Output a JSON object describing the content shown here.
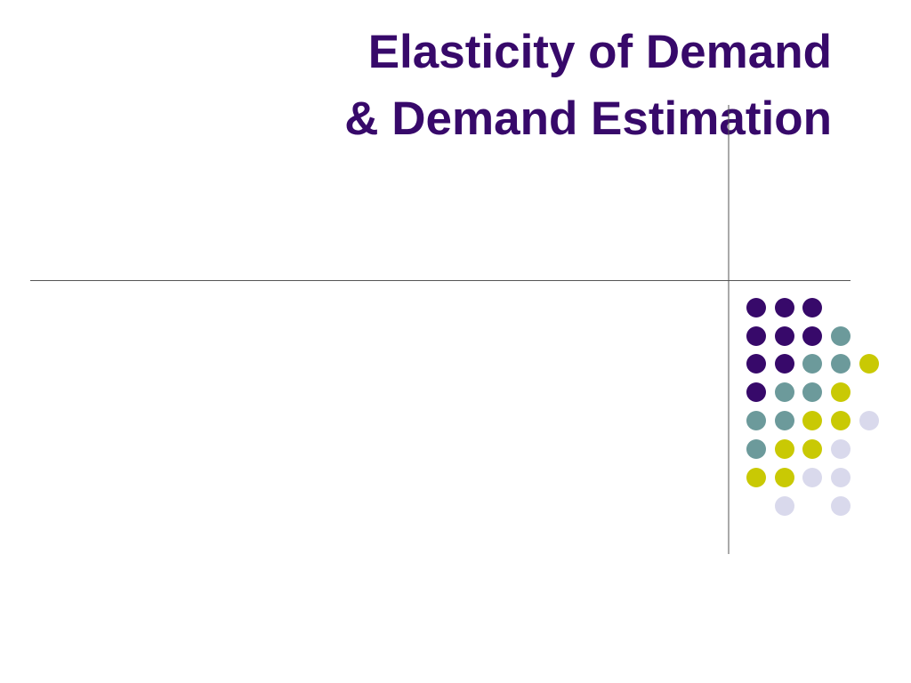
{
  "slide": {
    "title_lines": [
      "Elasticity of Demand",
      "& Demand Estimation"
    ]
  }
}
